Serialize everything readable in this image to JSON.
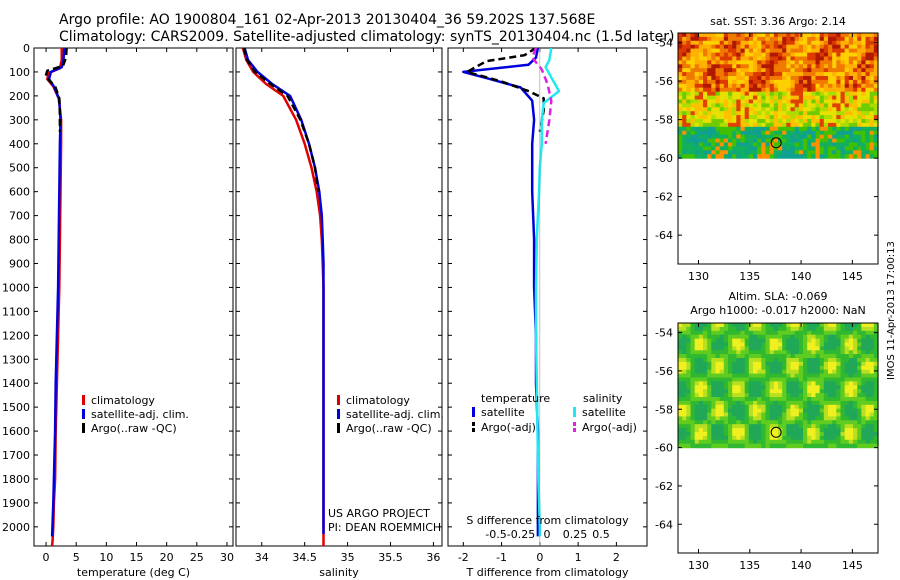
{
  "header": {
    "line1": "Argo profile: AO 1900804_161 02-Apr-2013 20130404_36 59.202S 137.568E",
    "line2": "Climatology: CARS2009. Satellite-adjusted climatology: synTS_20130404.nc (1.5d later)"
  },
  "colors": {
    "climatology": "#e00000",
    "satellite": "#0000dd",
    "argo": "#000000",
    "salinity_satellite": "#22e8f0",
    "salinity_argo": "#e020e0"
  },
  "chart_data": [
    {
      "type": "line",
      "xlabel": "temperature (deg C)",
      "ylabel": "",
      "xlim": [
        -2,
        31
      ],
      "ylim": [
        2080,
        0
      ],
      "xticks": [
        0,
        5,
        10,
        15,
        20,
        25,
        30
      ],
      "yticks": [
        0,
        100,
        200,
        300,
        400,
        500,
        600,
        700,
        800,
        900,
        1000,
        1100,
        1200,
        1300,
        1400,
        1500,
        1600,
        1700,
        1800,
        1900,
        2000
      ],
      "legend": {
        "position": "lower-middle",
        "entries": [
          "climatology",
          "satellite-adj. clim.",
          "Argo(..raw -QC)"
        ]
      },
      "series": [
        {
          "name": "climatology",
          "style": "solid",
          "color_key": "climatology",
          "x": [
            2.6,
            2.6,
            2.3,
            0.4,
            0.2,
            1.2,
            2.1,
            2.5,
            2.5,
            2.4,
            2.3,
            2.2,
            2.0,
            1.8,
            1.6,
            1.5,
            1.3,
            1.2,
            1.1,
            1.0,
            1.0
          ],
          "y": [
            0,
            50,
            85,
            105,
            130,
            160,
            210,
            300,
            400,
            600,
            800,
            1000,
            1200,
            1400,
            1600,
            1800,
            1900,
            2000,
            2050,
            2080,
            2080
          ]
        },
        {
          "name": "satellite-adj. clim.",
          "style": "solid",
          "color_key": "satellite",
          "x": [
            3.0,
            2.9,
            2.6,
            0.8,
            0.5,
            1.4,
            2.2,
            2.4,
            2.3,
            2.2,
            2.1,
            2.0,
            1.8,
            1.6,
            1.5,
            1.3,
            1.2,
            1.0
          ],
          "y": [
            0,
            50,
            80,
            100,
            130,
            165,
            215,
            300,
            400,
            600,
            800,
            1000,
            1200,
            1400,
            1600,
            1800,
            1900,
            2040
          ]
        },
        {
          "name": "Argo(..raw -QC)",
          "style": "dashed",
          "color_key": "argo",
          "x": [
            3.4,
            3.3,
            2.8,
            0.2,
            -0.1,
            1.5,
            2.2,
            2.3,
            2.3
          ],
          "y": [
            0,
            40,
            75,
            95,
            120,
            160,
            210,
            280,
            350
          ]
        }
      ]
    },
    {
      "type": "line",
      "xlabel": "salinity",
      "xlim": [
        33.7,
        36.1
      ],
      "ylim": [
        2080,
        0
      ],
      "xticks": [
        34,
        34.5,
        35,
        35.5,
        36
      ],
      "legend": {
        "position": "lower-middle",
        "entries": [
          "climatology",
          "satellite-adj. clim.",
          "Argo(..raw -QC)"
        ]
      },
      "annotations": [
        "US ARGO PROJECT",
        "PI: DEAN ROEMMICH"
      ],
      "series": [
        {
          "name": "climatology",
          "style": "solid",
          "color_key": "climatology",
          "x": [
            33.78,
            33.82,
            33.9,
            34.05,
            34.25,
            34.4,
            34.5,
            34.58,
            34.64,
            34.68,
            34.7,
            34.71,
            34.72,
            34.72,
            34.72,
            34.72,
            34.72,
            34.72
          ],
          "y": [
            0,
            50,
            100,
            150,
            200,
            300,
            400,
            500,
            600,
            700,
            800,
            900,
            1000,
            1200,
            1500,
            1800,
            2000,
            2080
          ]
        },
        {
          "name": "satellite-adj. clim.",
          "style": "solid",
          "color_key": "satellite",
          "x": [
            33.8,
            33.84,
            33.95,
            34.12,
            34.33,
            34.46,
            34.55,
            34.62,
            34.67,
            34.7,
            34.71,
            34.72,
            34.72,
            34.72,
            34.72,
            34.72,
            34.72,
            34.72
          ],
          "y": [
            0,
            50,
            100,
            150,
            200,
            300,
            400,
            500,
            600,
            700,
            800,
            900,
            1000,
            1200,
            1500,
            1800,
            2000,
            2030
          ]
        },
        {
          "name": "Argo(..raw -QC)",
          "style": "dashed",
          "color_key": "argo",
          "x": [
            33.79,
            33.83,
            33.92,
            34.1,
            34.3,
            34.45,
            34.55,
            34.62,
            34.66
          ],
          "y": [
            0,
            50,
            100,
            150,
            200,
            300,
            400,
            500,
            600
          ]
        }
      ]
    },
    {
      "type": "line",
      "xlabel": "T difference from climatology",
      "top_label": "S difference from climatology",
      "xlim": [
        -2.4,
        2.8
      ],
      "ylim": [
        2080,
        0
      ],
      "xticks": [
        -2,
        -1,
        0,
        1,
        2
      ],
      "top_ticks": [
        -0.5,
        -0.25,
        0,
        0.25,
        0.5
      ],
      "legend": {
        "position": "lower-middle",
        "titles": [
          "temperature",
          "salinity"
        ],
        "entries": [
          "satellite",
          "Argo(-adj)",
          "satellite",
          "Argo(-adj)"
        ]
      },
      "series": [
        {
          "name": "satellite",
          "group": "temperature",
          "style": "solid",
          "color_key": "satellite",
          "x": [
            -0.05,
            -0.1,
            -0.3,
            -2.0,
            -1.3,
            -0.5,
            -0.2,
            -0.15,
            -0.2,
            -0.2,
            -0.15,
            -0.15,
            -0.1,
            -0.1,
            -0.05,
            -0.05,
            -0.05,
            -0.05,
            -0.05
          ],
          "y": [
            0,
            40,
            70,
            100,
            130,
            165,
            220,
            300,
            400,
            600,
            800,
            1000,
            1200,
            1400,
            1600,
            1800,
            1900,
            2000,
            2040
          ]
        },
        {
          "name": "Argo(-adj)",
          "group": "temperature",
          "style": "dashed",
          "color_key": "argo",
          "x": [
            -0.1,
            -0.4,
            -1.4,
            -1.9,
            -1.0,
            -0.3,
            0.1,
            0.1,
            0.0
          ],
          "y": [
            0,
            30,
            55,
            100,
            140,
            180,
            210,
            260,
            350
          ]
        },
        {
          "name": "satellite",
          "group": "salinity",
          "style": "solid",
          "color_key": "salinity_satellite",
          "x": [
            0.3,
            0.25,
            0.15,
            0.5,
            0.1,
            0.05,
            0.05,
            0.0,
            -0.02,
            -0.05,
            -0.08,
            -0.1,
            -0.1,
            -0.08,
            -0.06,
            -0.04,
            -0.02,
            0.0,
            0.0
          ],
          "y": [
            0,
            50,
            80,
            180,
            230,
            300,
            400,
            500,
            600,
            700,
            800,
            1000,
            1200,
            1400,
            1600,
            1800,
            1900,
            2000,
            2040
          ]
        },
        {
          "name": "Argo(-adj)",
          "group": "salinity",
          "style": "dashed",
          "color_key": "salinity_argo",
          "x": [
            -0.1,
            -0.2,
            0.05,
            0.2,
            0.3,
            0.25,
            0.15
          ],
          "y": [
            0,
            40,
            90,
            150,
            220,
            300,
            400
          ]
        }
      ]
    },
    {
      "type": "heatmap",
      "title": "sat. SST: 3.36 Argo: 2.14",
      "xlim": [
        128,
        147.5
      ],
      "ylim": [
        -65.5,
        -53.5
      ],
      "xticks": [
        130,
        135,
        140,
        145
      ],
      "yticks": [
        -54,
        -56,
        -58,
        -60,
        -62,
        -64
      ],
      "data_extent_lat": [
        -53.5,
        -60
      ],
      "marker": {
        "lon": 137.568,
        "lat": -59.202
      }
    },
    {
      "type": "heatmap",
      "title": "Altim. SLA: -0.069",
      "subtitle": "Argo h1000: -0.017 h2000: NaN",
      "xlim": [
        128,
        147.5
      ],
      "ylim": [
        -65.5,
        -53.5
      ],
      "xticks": [
        130,
        135,
        140,
        145
      ],
      "yticks": [
        -54,
        -56,
        -58,
        -60,
        -62,
        -64
      ],
      "data_extent_lat": [
        -53.5,
        -60
      ],
      "marker": {
        "lon": 137.568,
        "lat": -59.202
      }
    }
  ],
  "footer": {
    "stamp": "IMOS 11-Apr-2013 17:00:13"
  }
}
